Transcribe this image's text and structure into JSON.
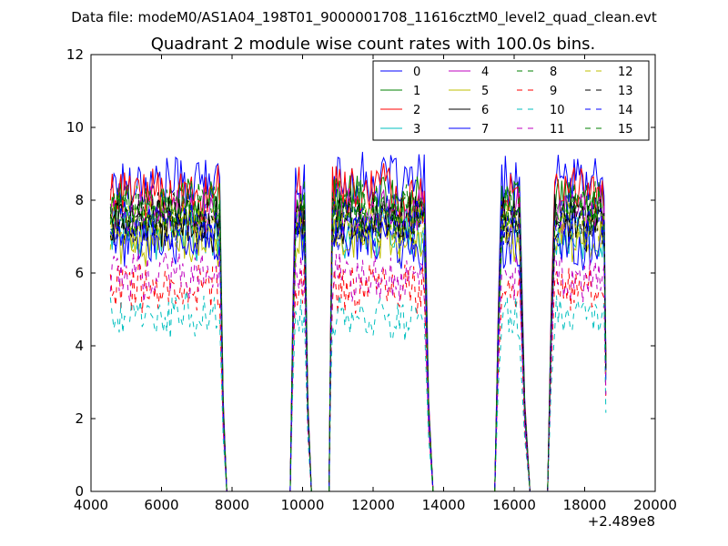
{
  "header": {
    "suptitle": "Data file: modeM0/AS1A04_198T01_9000001708_11616cztM0_level2_quad_clean.evt"
  },
  "chart_data": {
    "type": "line",
    "title": "Quadrant 2 module wise count rates with 100.0s bins.",
    "xlabel": "",
    "ylabel": "",
    "x_offset_label": "+2.489e8",
    "xlim": [
      4000,
      20000
    ],
    "ylim": [
      0,
      12
    ],
    "xticks": [
      "4000",
      "6000",
      "8000",
      "10000",
      "12000",
      "14000",
      "16000",
      "18000",
      "20000"
    ],
    "yticks": [
      "0",
      "2",
      "4",
      "6",
      "8",
      "10",
      "12"
    ],
    "grid": false,
    "legend": {
      "placement": "top-right",
      "columns": 4
    },
    "segments": [
      {
        "type": "data",
        "start": 4550,
        "end": 7650
      },
      {
        "type": "fall",
        "from": 7650,
        "to": 7850
      },
      {
        "type": "gap",
        "start": 7850,
        "end": 9650
      },
      {
        "type": "rise",
        "from": 9650,
        "to": 9800
      },
      {
        "type": "data",
        "start": 9800,
        "end": 10050
      },
      {
        "type": "fall",
        "from": 10050,
        "to": 10250
      },
      {
        "type": "gap",
        "start": 10250,
        "end": 10750
      },
      {
        "type": "rise",
        "from": 10750,
        "to": 10850
      },
      {
        "type": "data",
        "start": 10850,
        "end": 13450
      },
      {
        "type": "fall",
        "from": 13450,
        "to": 13700
      },
      {
        "type": "gap",
        "start": 13700,
        "end": 15450
      },
      {
        "type": "rise",
        "from": 15450,
        "to": 15650
      },
      {
        "type": "data",
        "start": 15650,
        "end": 16150
      },
      {
        "type": "fall",
        "from": 16150,
        "to": 16450
      },
      {
        "type": "gap",
        "start": 16450,
        "end": 16950
      },
      {
        "type": "rise",
        "from": 16950,
        "to": 17150
      },
      {
        "type": "data",
        "start": 17150,
        "end": 18550
      },
      {
        "type": "drop",
        "to": 18600
      }
    ],
    "series": [
      {
        "name": "0",
        "color": "#0000ff",
        "dash": "solid",
        "level": 8.5
      },
      {
        "name": "1",
        "color": "#008000",
        "dash": "solid",
        "level": 7.9
      },
      {
        "name": "2",
        "color": "#ff0000",
        "dash": "solid",
        "level": 8.2
      },
      {
        "name": "3",
        "color": "#00bfbf",
        "dash": "solid",
        "level": 7.1
      },
      {
        "name": "4",
        "color": "#bf00bf",
        "dash": "solid",
        "level": 7.7
      },
      {
        "name": "5",
        "color": "#bfbf00",
        "dash": "solid",
        "level": 6.9
      },
      {
        "name": "6",
        "color": "#000000",
        "dash": "solid",
        "level": 7.4
      },
      {
        "name": "7",
        "color": "#0000ff",
        "dash": "solid",
        "level": 6.8
      },
      {
        "name": "8",
        "color": "#008000",
        "dash": "dashed",
        "level": 7.6
      },
      {
        "name": "9",
        "color": "#ff0000",
        "dash": "dashed",
        "level": 5.6
      },
      {
        "name": "10",
        "color": "#00bfbf",
        "dash": "dashed",
        "level": 4.8
      },
      {
        "name": "11",
        "color": "#bf00bf",
        "dash": "dashed",
        "level": 5.9
      },
      {
        "name": "12",
        "color": "#bfbf00",
        "dash": "dashed",
        "level": 7.3
      },
      {
        "name": "13",
        "color": "#000000",
        "dash": "dashed",
        "level": 7.5
      },
      {
        "name": "14",
        "color": "#0000ff",
        "dash": "dashed",
        "level": 7.4
      },
      {
        "name": "15",
        "color": "#008000",
        "dash": "dashed",
        "level": 7.8
      }
    ]
  }
}
